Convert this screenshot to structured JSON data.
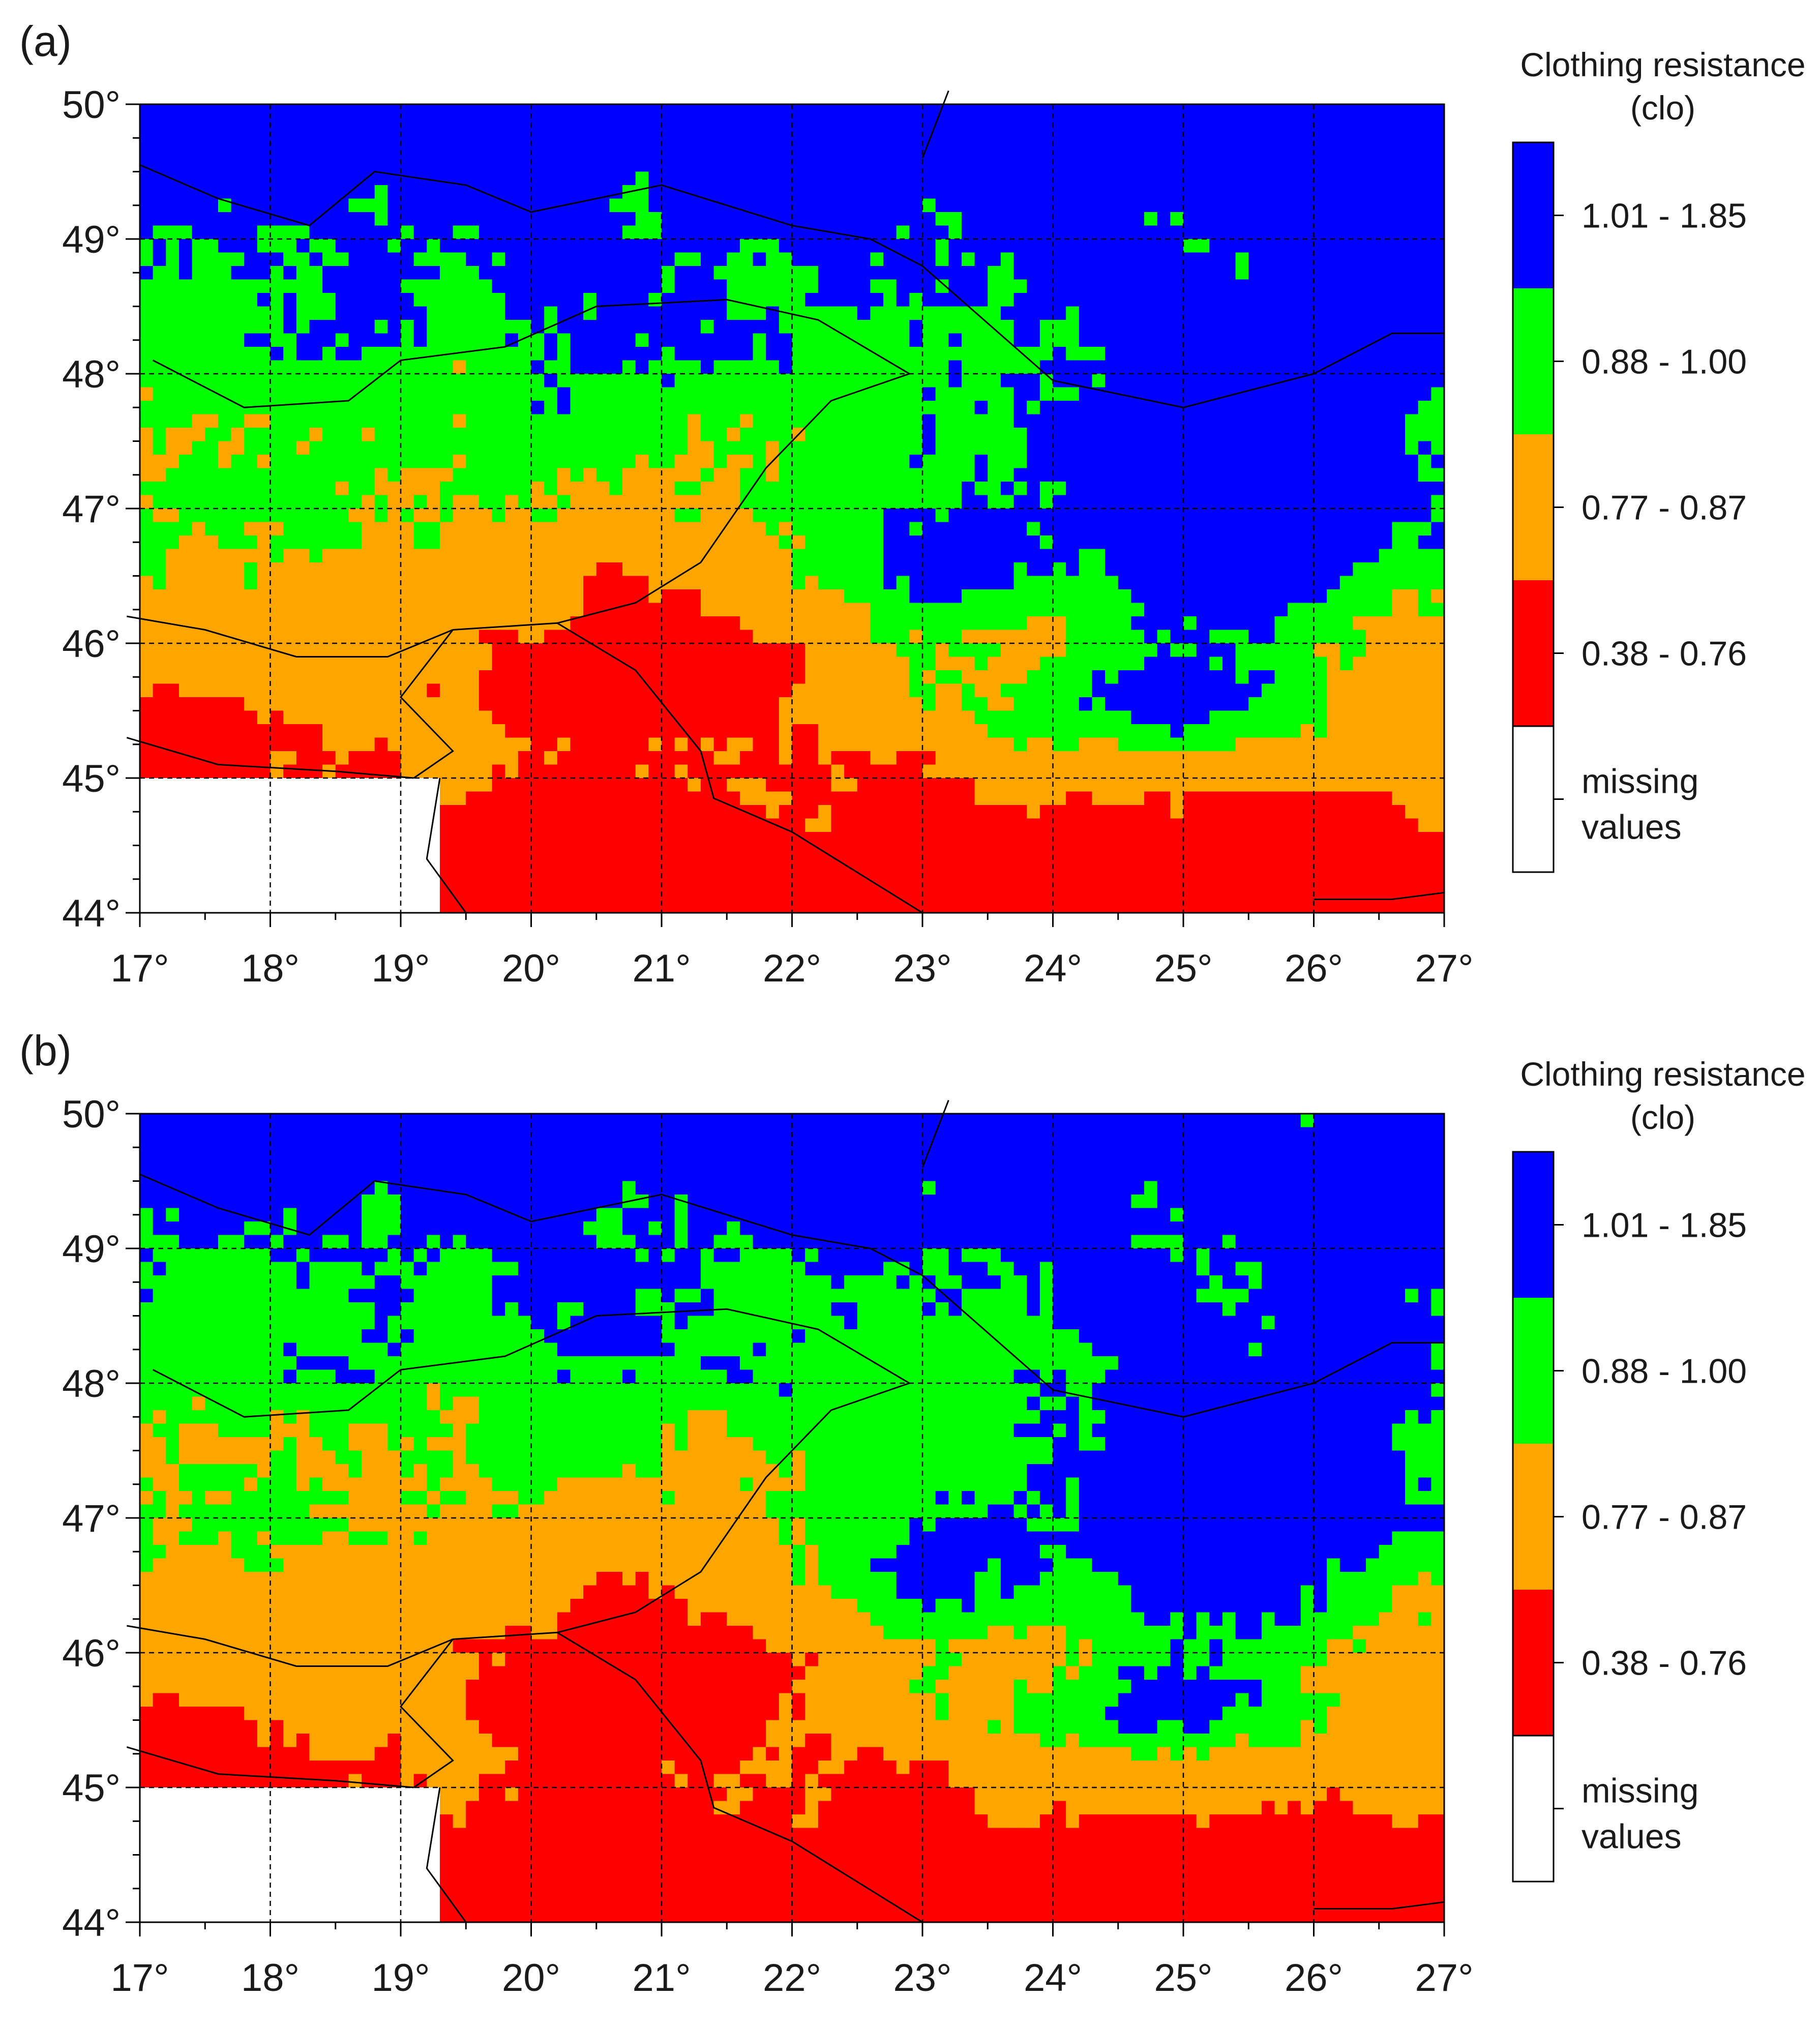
{
  "colors": {
    "blue": "#0000ff",
    "green": "#00ff00",
    "orange": "#ffa500",
    "red": "#ff0000",
    "missing": "#ffffff",
    "border": "#000000",
    "grid": "#000000"
  },
  "legend": {
    "title_line1": "Clothing resistance",
    "title_line2": "(clo)",
    "classes": [
      {
        "label": "1.01 - 1.85",
        "color": "blue"
      },
      {
        "label": "0.88 - 1.00",
        "color": "green"
      },
      {
        "label": "0.77 - 0.87",
        "color": "orange"
      },
      {
        "label": "0.38 - 0.76",
        "color": "red"
      }
    ],
    "missing_line1": "missing",
    "missing_line2": "values"
  },
  "map_extent": {
    "lon_min": 17,
    "lon_max": 27,
    "lat_min": 44,
    "lat_max": 50
  },
  "lon_ticks": [
    "17°",
    "18°",
    "19°",
    "20°",
    "21°",
    "22°",
    "23°",
    "24°",
    "25°",
    "26°",
    "27°"
  ],
  "lat_ticks": [
    "50°",
    "49°",
    "48°",
    "47°",
    "46°",
    "45°",
    "44°"
  ],
  "panels": [
    {
      "label": "(a)",
      "variant": "a"
    },
    {
      "label": "(b)",
      "variant": "b"
    }
  ]
}
